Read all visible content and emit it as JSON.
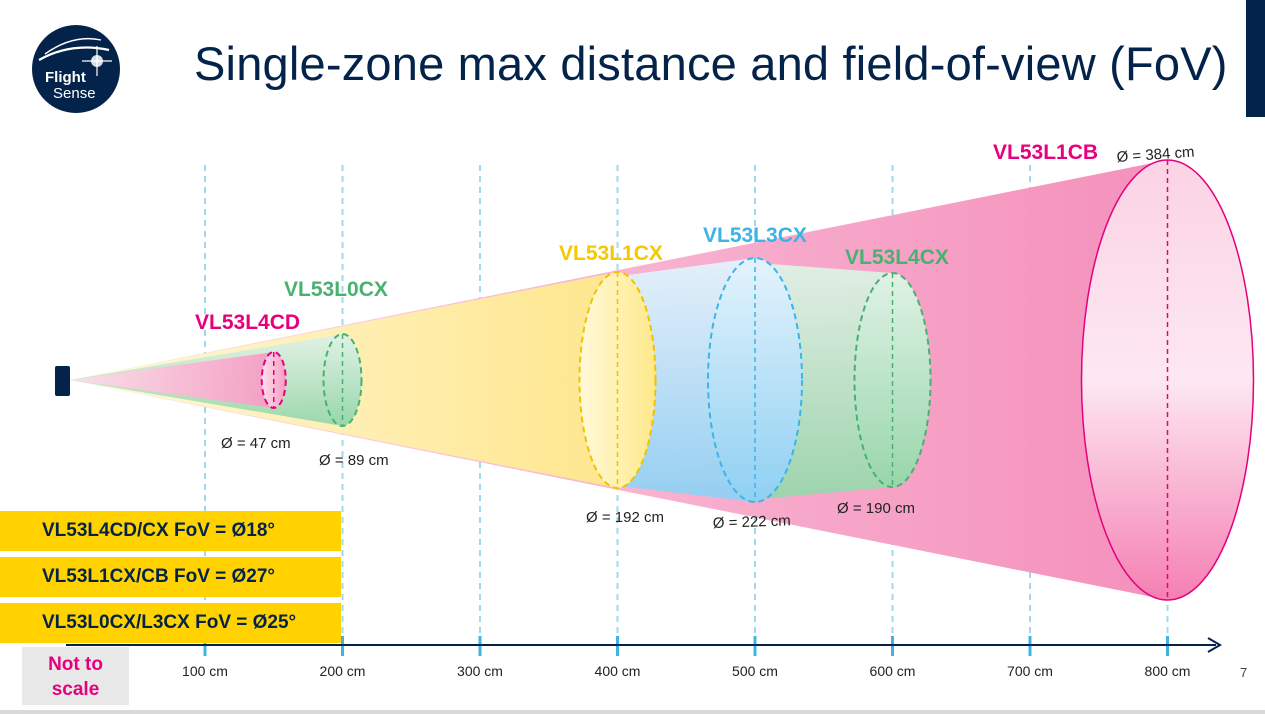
{
  "title": "Single-zone max distance and field-of-view (FoV)",
  "logo": {
    "line1": "Flight",
    "line2": "Sense"
  },
  "colors": {
    "navy": "#03234b",
    "magenta": "#e6007e",
    "yellow": "#ffd200",
    "blue": "#3cb4e6",
    "green": "#49b170"
  },
  "sensors": [
    {
      "name": "VL53L4CD",
      "range_cm": 150,
      "diameter_label": "Ø = 47 cm",
      "color": "#e6007e"
    },
    {
      "name": "VL53L0CX",
      "range_cm": 200,
      "diameter_label": "Ø = 89 cm",
      "color": "#49b170"
    },
    {
      "name": "VL53L1CX",
      "range_cm": 400,
      "diameter_label": "Ø = 192 cm",
      "color": "#ffd200"
    },
    {
      "name": "VL53L3CX",
      "range_cm": 500,
      "diameter_label": "Ø = 222 cm",
      "color": "#3cb4e6"
    },
    {
      "name": "VL53L4CX",
      "range_cm": 600,
      "diameter_label": "Ø = 190 cm",
      "color": "#49b170"
    },
    {
      "name": "VL53L1CB",
      "range_cm": 800,
      "diameter_label": "Ø = 384 cm",
      "color": "#e6007e"
    }
  ],
  "fov_boxes": [
    "VL53L4CD/CX FoV = Ø18°",
    "VL53L1CX/CB FoV = Ø27°",
    "VL53L0CX/L3CX FoV = Ø25°"
  ],
  "axis": {
    "ticks": [
      "100 cm",
      "200 cm",
      "300 cm",
      "400 cm",
      "500 cm",
      "600 cm",
      "700 cm",
      "800 cm"
    ]
  },
  "note": {
    "line1": "Not to",
    "line2": "scale"
  },
  "page_number": "7"
}
